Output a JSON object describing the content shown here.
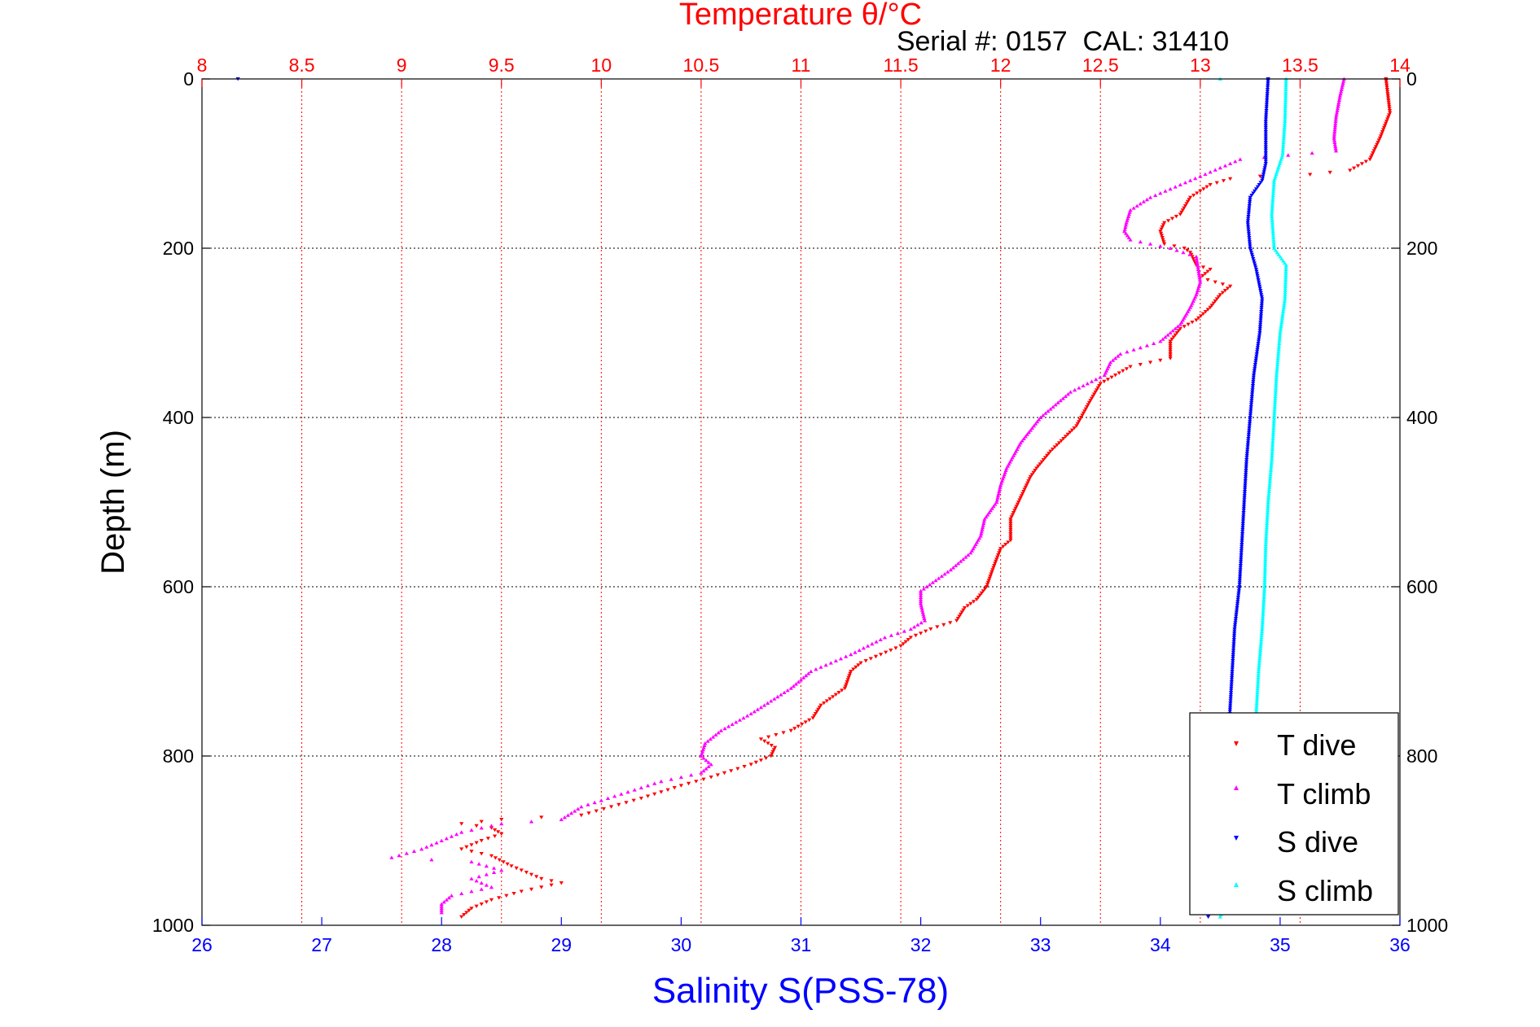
{
  "chart_data": {
    "type": "scatter",
    "title": "Temperature θ/°C",
    "subtitle": "Serial #: 0157  CAL: 31410",
    "xlabel_top": "Temperature θ/°C",
    "xlabel_bottom": "Salinity S(PSS-78)",
    "ylabel": "Depth (m)",
    "top_axis": {
      "range": [
        8,
        14
      ],
      "ticks": [
        8,
        8.5,
        9,
        9.5,
        10,
        10.5,
        11,
        11.5,
        12,
        12.5,
        13,
        13.5,
        14
      ],
      "tick_labels": [
        "8",
        "8.5",
        "9",
        "9.5",
        "10",
        "10.5",
        "11",
        "11.5",
        "12",
        "12.5",
        "13",
        "13.5",
        "14"
      ],
      "color": "#ff0000"
    },
    "bottom_axis": {
      "range": [
        26,
        36
      ],
      "ticks": [
        26,
        27,
        28,
        29,
        30,
        31,
        32,
        33,
        34,
        35,
        36
      ],
      "tick_labels": [
        "26",
        "27",
        "28",
        "29",
        "30",
        "31",
        "32",
        "33",
        "34",
        "35",
        "36"
      ],
      "color": "#0000ff"
    },
    "y_axis": {
      "range": [
        0,
        1000
      ],
      "reversed": true,
      "ticks": [
        0,
        200,
        400,
        600,
        800,
        1000
      ],
      "tick_labels": [
        "0",
        "200",
        "400",
        "600",
        "800",
        "1000"
      ]
    },
    "grid": true,
    "legend_position": "bottom-right",
    "series": [
      {
        "name": "T dive",
        "axis": "temperature",
        "color": "#ff0000",
        "marker": "triangle-down",
        "points": [
          [
            13.93,
            0
          ],
          [
            13.94,
            20
          ],
          [
            13.95,
            40
          ],
          [
            13.9,
            70
          ],
          [
            13.85,
            95
          ],
          [
            13.75,
            108
          ],
          [
            13.55,
            113
          ],
          [
            13.3,
            115
          ],
          [
            13.15,
            118
          ],
          [
            13.05,
            125
          ],
          [
            12.95,
            140
          ],
          [
            12.9,
            160
          ],
          [
            12.82,
            170
          ],
          [
            12.8,
            180
          ],
          [
            12.82,
            195
          ],
          [
            12.92,
            200
          ],
          [
            12.95,
            205
          ],
          [
            12.98,
            220
          ],
          [
            13.05,
            225
          ],
          [
            13.0,
            235
          ],
          [
            13.15,
            245
          ],
          [
            13.1,
            255
          ],
          [
            13.05,
            270
          ],
          [
            12.98,
            285
          ],
          [
            12.9,
            295
          ],
          [
            12.85,
            310
          ],
          [
            12.85,
            330
          ],
          [
            12.65,
            340
          ],
          [
            12.5,
            360
          ],
          [
            12.45,
            380
          ],
          [
            12.38,
            410
          ],
          [
            12.25,
            440
          ],
          [
            12.18,
            460
          ],
          [
            12.15,
            470
          ],
          [
            12.1,
            495
          ],
          [
            12.05,
            520
          ],
          [
            12.05,
            545
          ],
          [
            12.0,
            555
          ],
          [
            11.96,
            580
          ],
          [
            11.93,
            600
          ],
          [
            11.88,
            615
          ],
          [
            11.82,
            625
          ],
          [
            11.78,
            640
          ],
          [
            11.65,
            650
          ],
          [
            11.55,
            660
          ],
          [
            11.5,
            670
          ],
          [
            11.3,
            690
          ],
          [
            11.25,
            700
          ],
          [
            11.22,
            720
          ],
          [
            11.1,
            740
          ],
          [
            11.06,
            755
          ],
          [
            10.95,
            770
          ],
          [
            10.8,
            780
          ],
          [
            10.87,
            790
          ],
          [
            10.85,
            800
          ],
          [
            10.75,
            810
          ],
          [
            10.55,
            825
          ],
          [
            10.4,
            835
          ],
          [
            10.2,
            850
          ],
          [
            10.05,
            860
          ],
          [
            9.9,
            870
          ],
          [
            9.5,
            875
          ],
          [
            9.3,
            880
          ],
          [
            9.45,
            885
          ],
          [
            9.5,
            892
          ],
          [
            9.4,
            900
          ],
          [
            9.3,
            910
          ],
          [
            9.45,
            918
          ],
          [
            9.55,
            930
          ],
          [
            9.7,
            945
          ],
          [
            9.8,
            950
          ],
          [
            9.6,
            960
          ],
          [
            9.45,
            970
          ],
          [
            9.35,
            980
          ],
          [
            9.3,
            990
          ]
        ]
      },
      {
        "name": "T climb",
        "axis": "temperature",
        "color": "#ff00ff",
        "marker": "triangle-up",
        "points": [
          [
            13.72,
            0
          ],
          [
            13.7,
            20
          ],
          [
            13.68,
            45
          ],
          [
            13.67,
            70
          ],
          [
            13.68,
            85
          ],
          [
            13.2,
            95
          ],
          [
            13.05,
            110
          ],
          [
            12.9,
            125
          ],
          [
            12.75,
            140
          ],
          [
            12.65,
            155
          ],
          [
            12.63,
            170
          ],
          [
            12.62,
            180
          ],
          [
            12.65,
            190
          ],
          [
            12.75,
            195
          ],
          [
            12.85,
            200
          ],
          [
            12.98,
            210
          ],
          [
            13.0,
            240
          ],
          [
            12.98,
            255
          ],
          [
            12.95,
            270
          ],
          [
            12.9,
            290
          ],
          [
            12.85,
            300
          ],
          [
            12.8,
            310
          ],
          [
            12.6,
            325
          ],
          [
            12.55,
            335
          ],
          [
            12.52,
            350
          ],
          [
            12.35,
            370
          ],
          [
            12.2,
            400
          ],
          [
            12.1,
            430
          ],
          [
            12.03,
            460
          ],
          [
            12.0,
            480
          ],
          [
            11.98,
            500
          ],
          [
            11.92,
            520
          ],
          [
            11.9,
            540
          ],
          [
            11.85,
            560
          ],
          [
            11.75,
            580
          ],
          [
            11.6,
            605
          ],
          [
            11.6,
            620
          ],
          [
            11.62,
            640
          ],
          [
            11.55,
            650
          ],
          [
            11.42,
            660
          ],
          [
            11.25,
            680
          ],
          [
            11.05,
            700
          ],
          [
            10.95,
            720
          ],
          [
            10.85,
            735
          ],
          [
            10.75,
            750
          ],
          [
            10.6,
            770
          ],
          [
            10.52,
            785
          ],
          [
            10.5,
            800
          ],
          [
            10.55,
            810
          ],
          [
            10.5,
            820
          ],
          [
            10.3,
            830
          ],
          [
            10.1,
            845
          ],
          [
            9.9,
            860
          ],
          [
            9.8,
            875
          ],
          [
            9.5,
            880
          ],
          [
            9.3,
            890
          ],
          [
            9.1,
            910
          ],
          [
            8.95,
            920
          ],
          [
            9.35,
            925
          ],
          [
            9.5,
            935
          ],
          [
            9.35,
            945
          ],
          [
            9.45,
            955
          ],
          [
            9.25,
            965
          ],
          [
            9.2,
            975
          ],
          [
            9.2,
            985
          ]
        ]
      },
      {
        "name": "S dive",
        "axis": "salinity",
        "color": "#0000ff",
        "marker": "triangle-down",
        "points": [
          [
            26.3,
            0
          ],
          [
            34.9,
            0
          ],
          [
            34.88,
            50
          ],
          [
            34.88,
            100
          ],
          [
            34.85,
            120
          ],
          [
            34.75,
            140
          ],
          [
            34.73,
            170
          ],
          [
            34.75,
            200
          ],
          [
            34.8,
            225
          ],
          [
            34.85,
            260
          ],
          [
            34.83,
            300
          ],
          [
            34.78,
            350
          ],
          [
            34.75,
            400
          ],
          [
            34.72,
            450
          ],
          [
            34.7,
            500
          ],
          [
            34.68,
            550
          ],
          [
            34.66,
            600
          ],
          [
            34.62,
            650
          ],
          [
            34.6,
            700
          ],
          [
            34.58,
            750
          ],
          [
            34.56,
            800
          ],
          [
            34.55,
            850
          ],
          [
            34.54,
            900
          ],
          [
            34.5,
            950
          ],
          [
            34.4,
            990
          ]
        ]
      },
      {
        "name": "S climb",
        "axis": "salinity",
        "color": "#00ffff",
        "marker": "triangle-up",
        "points": [
          [
            34.5,
            0
          ],
          [
            35.05,
            0
          ],
          [
            35.04,
            50
          ],
          [
            35.02,
            90
          ],
          [
            34.95,
            120
          ],
          [
            34.93,
            160
          ],
          [
            34.95,
            200
          ],
          [
            35.05,
            220
          ],
          [
            35.04,
            260
          ],
          [
            35.0,
            300
          ],
          [
            34.97,
            350
          ],
          [
            34.95,
            400
          ],
          [
            34.93,
            450
          ],
          [
            34.9,
            500
          ],
          [
            34.88,
            550
          ],
          [
            34.87,
            600
          ],
          [
            34.85,
            650
          ],
          [
            34.82,
            700
          ],
          [
            34.8,
            750
          ],
          [
            34.78,
            800
          ],
          [
            34.75,
            850
          ],
          [
            34.72,
            900
          ],
          [
            34.6,
            950
          ],
          [
            34.5,
            990
          ]
        ]
      }
    ]
  }
}
